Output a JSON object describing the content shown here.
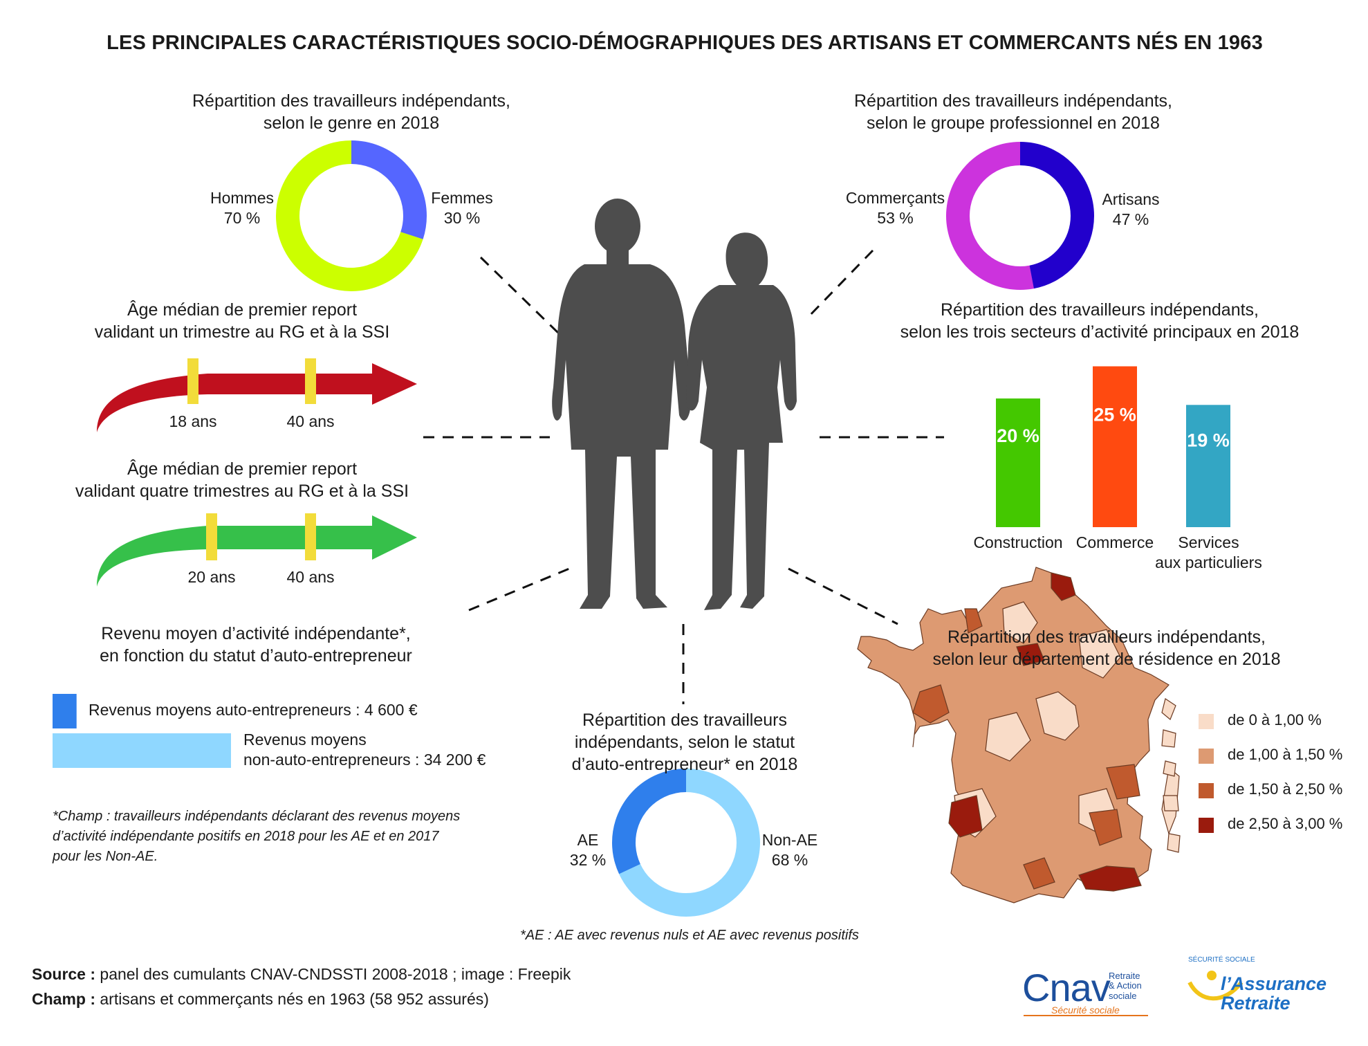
{
  "title": "LES PRINCIPALES CARACTÉRISTIQUES SOCIO-DÉMOGRAPHIQUES DES ARTISANS ET COMMERCANTS NÉS EN 1963",
  "colors": {
    "hommes": "#ccff00",
    "femmes": "#5566ff",
    "commercants": "#cc33dd",
    "artisans": "#2200cc",
    "construction": "#44c800",
    "commerce": "#ff4a10",
    "services": "#33a6c4",
    "ae": "#2f7fec",
    "non_ae": "#8fd7ff",
    "arrow_red": "#c0101e",
    "arrow_green": "#36c04a",
    "marker": "#f2dc3a",
    "map_1": "#f9dcc8",
    "map_2": "#dd9a72",
    "map_3": "#c05a2e",
    "map_4": "#9a1b0d",
    "silhouette": "#4d4d4d"
  },
  "genre": {
    "title_l1": "Répartition des travailleurs indépendants,",
    "title_l2": "selon le genre en 2018",
    "hommes_label": "Hommes",
    "hommes_value": "70 %",
    "femmes_label": "Femmes",
    "femmes_value": "30 %"
  },
  "groupe": {
    "title_l1": "Répartition des travailleurs indépendants,",
    "title_l2": "selon le groupe professionnel en 2018",
    "commercants_label": "Commerçants",
    "commercants_value": "53 %",
    "artisans_label": "Artisans",
    "artisans_value": "47 %"
  },
  "age1": {
    "title_l1": "Âge médian de premier report",
    "title_l2": "validant un trimestre au RG et à la SSI",
    "m1": "18 ans",
    "m2": "40 ans"
  },
  "age4": {
    "title_l1": "Âge médian de premier report",
    "title_l2": "validant quatre trimestres au RG et à la SSI",
    "m1": "20 ans",
    "m2": "40 ans"
  },
  "secteurs": {
    "title_l1": "Répartition des travailleurs indépendants,",
    "title_l2": "selon les trois secteurs d’activité principaux en 2018",
    "cat1": "Construction",
    "cat2": "Commerce",
    "cat3_l1": "Services",
    "cat3_l2": "aux particuliers",
    "v1": "20 %",
    "v2": "25 %",
    "v3": "19 %"
  },
  "revenu": {
    "title_l1": "Revenu moyen d’activité indépendante*,",
    "title_l2": "en fonction du statut d’auto-entrepreneur",
    "ae_label": "Revenus moyens auto-entrepreneurs : 4 600 €",
    "nonae_l1": "Revenus moyens",
    "nonae_l2": "non-auto-entrepreneurs : 34 200 €",
    "note_l1": "*Champ : travailleurs indépendants déclarant des revenus moyens",
    "note_l2": "d’activité indépendante positifs en 2018 pour les AE et en 2017",
    "note_l3": "pour les Non-AE."
  },
  "statut": {
    "title_l1": "Répartition des travailleurs",
    "title_l2": "indépendants, selon le statut",
    "title_l3": "d’auto-entrepreneur* en 2018",
    "ae_label": "AE",
    "ae_value": "32 %",
    "nonae_label": "Non-AE",
    "nonae_value": "68 %",
    "note": "*AE : AE avec revenus nuls et AE avec revenus positifs"
  },
  "departement": {
    "title_l1": "Répartition des travailleurs indépendants,",
    "title_l2": "selon leur département de résidence en 2018",
    "legend": [
      "de 0 à 1,00 %",
      "de 1,00 à 1,50 %",
      "de 1,50 à 2,50 %",
      "de 2,50 à 3,00 %"
    ]
  },
  "footer": {
    "source_label": "Source :",
    "source_text": " panel des cumulants CNAV-CNDSSTI 2008-2018 ; image : Freepik",
    "champ_label": "Champ :",
    "champ_text": " artisans et commerçants nés en 1963 (58 952 assurés)"
  },
  "logos": {
    "cnav": "Cnav",
    "cnav_sub_l1": "Retraite",
    "cnav_sub_l2": "& Action",
    "cnav_sub_l3": "sociale",
    "cnav_ss": "Sécurité sociale",
    "ar_l1": "l’Assurance",
    "ar_l2": "Retraite",
    "ar_ss": "SÉCURITÉ SOCIALE"
  },
  "chart_data": [
    {
      "type": "pie",
      "title": "Répartition des travailleurs indépendants, selon le genre en 2018",
      "categories": [
        "Hommes",
        "Femmes"
      ],
      "values": [
        70,
        30
      ]
    },
    {
      "type": "pie",
      "title": "Répartition des travailleurs indépendants, selon le groupe professionnel en 2018",
      "categories": [
        "Commerçants",
        "Artisans"
      ],
      "values": [
        53,
        47
      ]
    },
    {
      "type": "bar",
      "title": "Répartition des travailleurs indépendants, selon les trois secteurs d’activité principaux en 2018",
      "categories": [
        "Construction",
        "Commerce",
        "Services aux particuliers"
      ],
      "values": [
        20,
        25,
        19
      ]
    },
    {
      "type": "pie",
      "title": "Répartition des travailleurs indépendants, selon le statut d’auto-entrepreneur* en 2018",
      "categories": [
        "AE",
        "Non-AE"
      ],
      "values": [
        32,
        68
      ]
    },
    {
      "type": "bar",
      "title": "Revenu moyen d’activité indépendante*, en fonction du statut d’auto-entrepreneur",
      "categories": [
        "auto-entrepreneurs",
        "non-auto-entrepreneurs"
      ],
      "values": [
        4600,
        34200
      ]
    },
    {
      "type": "line",
      "title": "Âge médian de premier report validant un trimestre au RG et à la SSI",
      "values": [
        18,
        40
      ]
    },
    {
      "type": "line",
      "title": "Âge médian de premier report validant quatre trimestres au RG et à la SSI",
      "values": [
        20,
        40
      ]
    }
  ]
}
